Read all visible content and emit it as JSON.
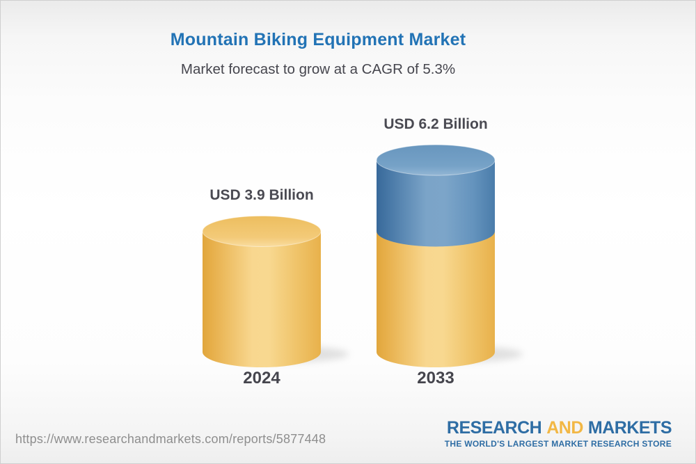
{
  "chart_data": {
    "type": "bar",
    "style": "3d-cylinder",
    "title": "Mountain Biking Equipment Market",
    "subtitle": "Market forecast to grow at a CAGR of 5.3%",
    "categories": [
      "2024",
      "2033"
    ],
    "values": [
      3.9,
      6.2
    ],
    "value_labels": [
      "USD 3.9 Billion",
      "USD 6.2 Billion"
    ],
    "unit": "USD Billion",
    "cagr_percent": 5.3,
    "axes": "none",
    "legend": "none",
    "colors": {
      "base_cylinder": "#F2C873",
      "growth_segment": "#6292BC",
      "title_text": "#2273B5",
      "label_text": "#4A4A52"
    }
  },
  "footer": {
    "url": "https://www.researchandmarkets.com/reports/5877448",
    "logo": {
      "research": "RESEARCH",
      "and": "AND",
      "markets": "MARKETS",
      "tagline": "THE WORLD'S LARGEST MARKET RESEARCH STORE"
    }
  }
}
